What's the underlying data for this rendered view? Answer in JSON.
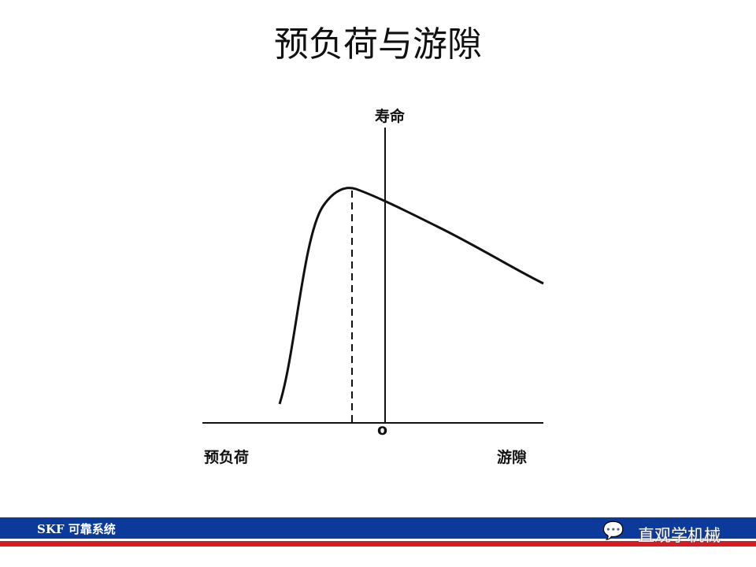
{
  "title": "预负荷与游隙",
  "diagram": {
    "y_axis_label": "寿命",
    "origin_label": "o",
    "left_label": "预负荷",
    "right_label": "游隙"
  },
  "footer": {
    "text": "SKF 可靠系统",
    "watermark": "直观学机械",
    "watermark_icon": "wechat-icon",
    "band_color": "#0c3a9a",
    "stripe_color": "#d81c24"
  }
}
